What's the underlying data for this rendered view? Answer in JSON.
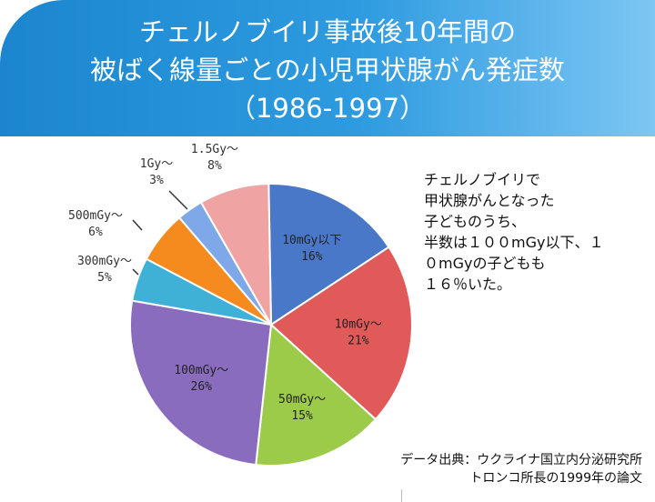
{
  "title": {
    "line1": "チェルノブイリ事故後10年間の",
    "line2": "被ばく線量ごとの小児甲状腺がん発症数",
    "line3": "（1986-1997）"
  },
  "chart_data": {
    "type": "pie",
    "title": "チェルノブイリ事故後10年間の被ばく線量ごとの小児甲状腺がん発症数（1986-1997）",
    "slices": [
      {
        "label": "10mGy以下",
        "value": 16,
        "value_label": "16%",
        "color": "#4a78c9"
      },
      {
        "label": "10mGy〜",
        "value": 21,
        "value_label": "21%",
        "color": "#e05a5a"
      },
      {
        "label": "50mGy〜",
        "value": 15,
        "value_label": "15%",
        "color": "#9ccb4a"
      },
      {
        "label": "100mGy〜",
        "value": 26,
        "value_label": "26%",
        "color": "#8a6cbf"
      },
      {
        "label": "300mGy〜",
        "value": 5,
        "value_label": "5%",
        "color": "#3fb0d6"
      },
      {
        "label": "500mGy〜",
        "value": 6,
        "value_label": "6%",
        "color": "#f58a1f"
      },
      {
        "label": "1Gy〜",
        "value": 3,
        "value_label": "3%",
        "color": "#7ea8e8"
      },
      {
        "label": "1.5Gy〜",
        "value": 8,
        "value_label": "8%",
        "color": "#f0a3a3"
      }
    ],
    "start_angle_deg": -1,
    "direction": "clockwise"
  },
  "note": {
    "lines": [
      "チェルノブイリで",
      "甲状腺がんとなった",
      "子どものうち、",
      "半数は１００mGy以下、１",
      "０mGyの子どもも",
      "１６％いた。"
    ]
  },
  "source": {
    "line1": "データ出典：ウクライナ国立内分泌研究所",
    "line2": "トロンコ所長の1999年の論文"
  }
}
